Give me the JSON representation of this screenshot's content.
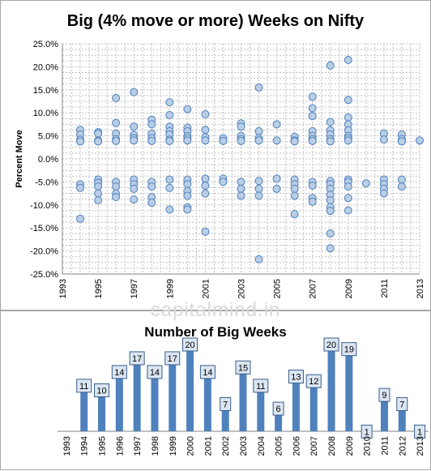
{
  "watermark": "capitalmind.in",
  "colors": {
    "marker_fill": "#b9cde5",
    "marker_stroke": "#4f81bd",
    "bar": "#4f81bd",
    "grid": "#bfbfbf",
    "label_fill": "#dce6f2",
    "label_stroke": "#385d8a"
  },
  "chart_data": [
    {
      "type": "scatter",
      "title": "Big (4% move or more) Weeks on Nifty",
      "xlabel": "",
      "ylabel": "Percent Move",
      "xlim": [
        1993,
        2013
      ],
      "ylim": [
        -25,
        25
      ],
      "x_ticks": [
        "1993",
        "1995",
        "1997",
        "1999",
        "2001",
        "2003",
        "2005",
        "2007",
        "2009",
        "2011",
        "2013"
      ],
      "y_ticks": [
        "25.0%",
        "20.0%",
        "15.0%",
        "10.0%",
        "5.0%",
        "0.0%",
        "-5.0%",
        "-10.0%",
        "-15.0%",
        "-20.0%",
        "-25.0%"
      ],
      "grid": true,
      "points": [
        [
          1994.0,
          6.3
        ],
        [
          1994.0,
          5.3
        ],
        [
          1994.0,
          4.2
        ],
        [
          1994.0,
          3.8
        ],
        [
          1994.0,
          -5.5
        ],
        [
          1994.0,
          -6.3
        ],
        [
          1994.0,
          -13.0
        ],
        [
          1995.0,
          5.8
        ],
        [
          1995.0,
          5.5
        ],
        [
          1995.0,
          4.0
        ],
        [
          1995.0,
          3.8
        ],
        [
          1995.0,
          -4.5
        ],
        [
          1995.0,
          -5.2
        ],
        [
          1995.0,
          -6.0
        ],
        [
          1995.0,
          -7.5
        ],
        [
          1995.0,
          -9.0
        ],
        [
          1996.0,
          13.2
        ],
        [
          1996.0,
          7.8
        ],
        [
          1996.0,
          5.5
        ],
        [
          1996.0,
          4.3
        ],
        [
          1996.0,
          3.9
        ],
        [
          1996.0,
          -5.0
        ],
        [
          1996.0,
          -6.0
        ],
        [
          1996.0,
          -7.5
        ],
        [
          1996.0,
          -8.3
        ],
        [
          1997.0,
          14.5
        ],
        [
          1997.0,
          7.0
        ],
        [
          1997.0,
          5.2
        ],
        [
          1997.0,
          4.5
        ],
        [
          1997.0,
          4.0
        ],
        [
          1997.0,
          -4.5
        ],
        [
          1997.0,
          -5.5
        ],
        [
          1997.0,
          -6.5
        ],
        [
          1997.0,
          -8.8
        ],
        [
          1998.0,
          8.5
        ],
        [
          1998.0,
          7.5
        ],
        [
          1998.0,
          5.5
        ],
        [
          1998.0,
          4.5
        ],
        [
          1998.0,
          3.9
        ],
        [
          1998.0,
          -5.0
        ],
        [
          1998.0,
          -6.0
        ],
        [
          1998.0,
          -8.3
        ],
        [
          1998.0,
          -9.5
        ],
        [
          1999.0,
          12.3
        ],
        [
          1999.0,
          9.5
        ],
        [
          1999.0,
          7.0
        ],
        [
          1999.0,
          6.0
        ],
        [
          1999.0,
          5.3
        ],
        [
          1999.0,
          4.2
        ],
        [
          1999.0,
          3.9
        ],
        [
          1999.0,
          -4.5
        ],
        [
          1999.0,
          -6.3
        ],
        [
          1999.0,
          -11.0
        ],
        [
          2000.0,
          10.8
        ],
        [
          2000.0,
          6.8
        ],
        [
          2000.0,
          6.0
        ],
        [
          2000.0,
          5.0
        ],
        [
          2000.0,
          4.5
        ],
        [
          2000.0,
          4.0
        ],
        [
          2000.0,
          -4.5
        ],
        [
          2000.0,
          -5.5
        ],
        [
          2000.0,
          -7.0
        ],
        [
          2000.0,
          -8.0
        ],
        [
          2000.0,
          -10.5
        ],
        [
          2000.0,
          -11.0
        ],
        [
          2001.0,
          9.7
        ],
        [
          2001.0,
          6.3
        ],
        [
          2001.0,
          4.7
        ],
        [
          2001.0,
          4.0
        ],
        [
          2001.0,
          -4.3
        ],
        [
          2001.0,
          -5.8
        ],
        [
          2001.0,
          -7.5
        ],
        [
          2001.0,
          -15.8
        ],
        [
          2002.0,
          4.5
        ],
        [
          2002.0,
          3.9
        ],
        [
          2002.0,
          -4.3
        ],
        [
          2002.0,
          -5.0
        ],
        [
          2003.0,
          7.7
        ],
        [
          2003.0,
          7.0
        ],
        [
          2003.0,
          5.0
        ],
        [
          2003.0,
          4.3
        ],
        [
          2003.0,
          3.9
        ],
        [
          2003.0,
          -5.0
        ],
        [
          2003.0,
          -6.5
        ],
        [
          2003.0,
          -8.0
        ],
        [
          2004.0,
          15.5
        ],
        [
          2004.0,
          6.0
        ],
        [
          2004.0,
          4.5
        ],
        [
          2004.0,
          4.0
        ],
        [
          2004.0,
          -4.8
        ],
        [
          2004.0,
          -6.5
        ],
        [
          2004.0,
          -8.0
        ],
        [
          2004.0,
          -21.8
        ],
        [
          2005.0,
          7.5
        ],
        [
          2005.0,
          4.0
        ],
        [
          2005.0,
          -4.3
        ],
        [
          2005.0,
          -6.5
        ],
        [
          2006.0,
          4.8
        ],
        [
          2006.0,
          4.0
        ],
        [
          2006.0,
          3.8
        ],
        [
          2006.0,
          -4.5
        ],
        [
          2006.0,
          -5.5
        ],
        [
          2006.0,
          -6.5
        ],
        [
          2006.0,
          -8.0
        ],
        [
          2006.0,
          -12.0
        ],
        [
          2007.0,
          13.5
        ],
        [
          2007.0,
          11.0
        ],
        [
          2007.0,
          9.3
        ],
        [
          2007.0,
          6.0
        ],
        [
          2007.0,
          5.0
        ],
        [
          2007.0,
          4.3
        ],
        [
          2007.0,
          3.9
        ],
        [
          2007.0,
          -5.0
        ],
        [
          2007.0,
          -5.8
        ],
        [
          2007.0,
          -8.5
        ],
        [
          2007.0,
          -9.3
        ],
        [
          2008.0,
          20.3
        ],
        [
          2008.0,
          8.0
        ],
        [
          2008.0,
          6.2
        ],
        [
          2008.0,
          5.3
        ],
        [
          2008.0,
          4.3
        ],
        [
          2008.0,
          3.8
        ],
        [
          2008.0,
          -4.8
        ],
        [
          2008.0,
          -5.5
        ],
        [
          2008.0,
          -6.5
        ],
        [
          2008.0,
          -7.8
        ],
        [
          2008.0,
          -9.0
        ],
        [
          2008.0,
          -10.5
        ],
        [
          2008.0,
          -11.3
        ],
        [
          2008.0,
          -16.2
        ],
        [
          2008.0,
          -19.4
        ],
        [
          2009.0,
          21.5
        ],
        [
          2009.0,
          12.8
        ],
        [
          2009.0,
          9.0
        ],
        [
          2009.0,
          7.5
        ],
        [
          2009.0,
          6.2
        ],
        [
          2009.0,
          5.0
        ],
        [
          2009.0,
          4.5
        ],
        [
          2009.0,
          4.0
        ],
        [
          2009.0,
          -4.5
        ],
        [
          2009.0,
          -5.0
        ],
        [
          2009.0,
          -6.0
        ],
        [
          2009.0,
          -8.5
        ],
        [
          2009.0,
          -11.2
        ],
        [
          2010.0,
          -5.3
        ],
        [
          2011.0,
          5.5
        ],
        [
          2011.0,
          4.2
        ],
        [
          2011.0,
          -4.5
        ],
        [
          2011.0,
          -5.5
        ],
        [
          2011.0,
          -6.5
        ],
        [
          2011.0,
          -7.5
        ],
        [
          2012.0,
          5.3
        ],
        [
          2012.0,
          4.3
        ],
        [
          2012.0,
          3.8
        ],
        [
          2012.0,
          -4.5
        ],
        [
          2012.0,
          -6.0
        ],
        [
          2013.0,
          4.0
        ]
      ]
    },
    {
      "type": "bar",
      "title": "Number of Big Weeks",
      "xlabel": "",
      "ylabel": "",
      "categories": [
        "1993",
        "1994",
        "1995",
        "1996",
        "1997",
        "1998",
        "1999",
        "2000",
        "2001",
        "2002",
        "2003",
        "2004",
        "2005",
        "2006",
        "2007",
        "2008",
        "2009",
        "2010",
        "2011",
        "2012",
        "2013"
      ],
      "values": [
        0,
        11,
        10,
        14,
        17,
        14,
        17,
        20,
        14,
        7,
        15,
        11,
        6,
        13,
        12,
        20,
        19,
        1,
        9,
        7,
        1
      ],
      "data_labels": [
        "",
        "11",
        "10",
        "14",
        "17",
        "14",
        "17",
        "20",
        "14",
        "7",
        "15",
        "11",
        "6",
        "13",
        "12",
        "20",
        "19",
        "1",
        "9",
        "7",
        "1"
      ],
      "ylim": [
        0,
        20
      ],
      "legend": "none"
    }
  ]
}
